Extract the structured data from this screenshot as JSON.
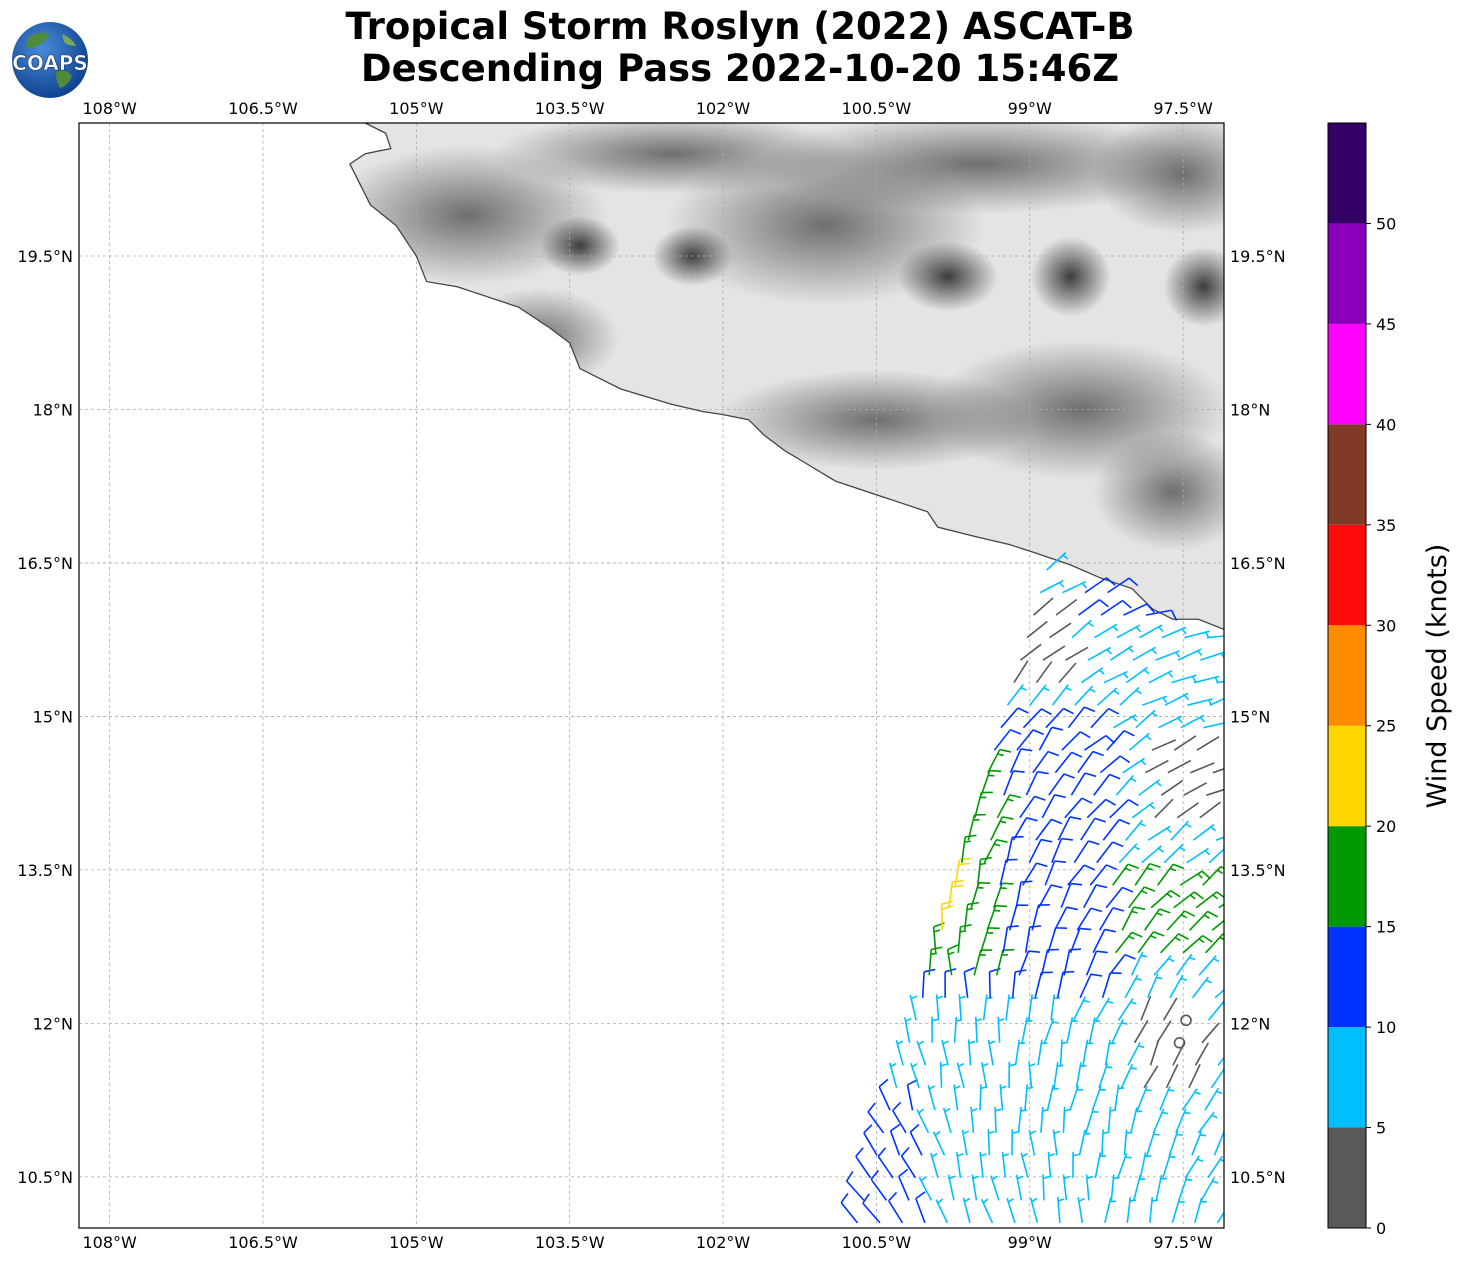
{
  "title": {
    "line1": "Tropical Storm Roslyn (2022) ASCAT-B",
    "line2": "Descending Pass 2022-10-20 15:46Z"
  },
  "logo": {
    "text": "COAPS",
    "icon": "globe-logo-icon"
  },
  "map": {
    "lon_range": [
      -108.3,
      -97.1
    ],
    "lat_range": [
      10.0,
      20.8
    ],
    "lon_ticks": [
      {
        "value": -108,
        "label": "108°W"
      },
      {
        "value": -106.5,
        "label": "106.5°W"
      },
      {
        "value": -105,
        "label": "105°W"
      },
      {
        "value": -103.5,
        "label": "103.5°W"
      },
      {
        "value": -102,
        "label": "102°W"
      },
      {
        "value": -100.5,
        "label": "100.5°W"
      },
      {
        "value": -99,
        "label": "99°W"
      },
      {
        "value": -97.5,
        "label": "97.5°W"
      }
    ],
    "lat_ticks": [
      {
        "value": 19.5,
        "label": "19.5°N"
      },
      {
        "value": 18,
        "label": "18°N"
      },
      {
        "value": 16.5,
        "label": "16.5°N"
      },
      {
        "value": 15,
        "label": "15°N"
      },
      {
        "value": 13.5,
        "label": "13.5°N"
      },
      {
        "value": 12,
        "label": "12°N"
      },
      {
        "value": 10.5,
        "label": "10.5°N"
      }
    ],
    "grid": "dashed",
    "coastline": [
      [
        -105.5,
        20.8
      ],
      [
        -105.3,
        20.7
      ],
      [
        -105.25,
        20.55
      ],
      [
        -105.5,
        20.5
      ],
      [
        -105.65,
        20.4
      ],
      [
        -105.45,
        20.0
      ],
      [
        -105.2,
        19.8
      ],
      [
        -105.0,
        19.5
      ],
      [
        -104.9,
        19.25
      ],
      [
        -104.6,
        19.2
      ],
      [
        -104.3,
        19.1
      ],
      [
        -104.0,
        19.0
      ],
      [
        -103.7,
        18.8
      ],
      [
        -103.5,
        18.65
      ],
      [
        -103.4,
        18.4
      ],
      [
        -103.0,
        18.2
      ],
      [
        -102.5,
        18.05
      ],
      [
        -102.2,
        17.98
      ],
      [
        -102.0,
        17.95
      ],
      [
        -101.75,
        17.9
      ],
      [
        -101.6,
        17.75
      ],
      [
        -101.4,
        17.6
      ],
      [
        -101.15,
        17.45
      ],
      [
        -100.9,
        17.3
      ],
      [
        -100.6,
        17.2
      ],
      [
        -100.3,
        17.1
      ],
      [
        -100.0,
        17.0
      ],
      [
        -99.9,
        16.85
      ],
      [
        -99.5,
        16.75
      ],
      [
        -99.2,
        16.68
      ],
      [
        -98.95,
        16.6
      ],
      [
        -98.6,
        16.48
      ],
      [
        -98.3,
        16.35
      ],
      [
        -98.0,
        16.25
      ],
      [
        -97.8,
        16.05
      ],
      [
        -97.6,
        15.95
      ],
      [
        -97.35,
        15.95
      ],
      [
        -97.1,
        15.85
      ]
    ],
    "land_color": "#e4e4e4"
  },
  "wind_barbs": {
    "region": {
      "lon": [
        -100.8,
        -97.1
      ],
      "lat": [
        10.0,
        16.6
      ]
    },
    "colors_note": "barb color by speed bin"
  },
  "colorbar": {
    "label": "Wind Speed (knots)",
    "ticks": [
      "0",
      "5",
      "10",
      "15",
      "20",
      "25",
      "30",
      "35",
      "40",
      "45",
      "50"
    ],
    "bins": [
      {
        "min": 0,
        "max": 5,
        "color": "#595959"
      },
      {
        "min": 5,
        "max": 10,
        "color": "#00bfff"
      },
      {
        "min": 10,
        "max": 15,
        "color": "#0033ff"
      },
      {
        "min": 15,
        "max": 20,
        "color": "#009900"
      },
      {
        "min": 20,
        "max": 25,
        "color": "#ffd700"
      },
      {
        "min": 25,
        "max": 30,
        "color": "#ff8c00"
      },
      {
        "min": 30,
        "max": 35,
        "color": "#ff0a0a"
      },
      {
        "min": 35,
        "max": 40,
        "color": "#823a28"
      },
      {
        "min": 40,
        "max": 45,
        "color": "#ff00ff"
      },
      {
        "min": 45,
        "max": 50,
        "color": "#8a00bb"
      },
      {
        "min": 50,
        "max": 55,
        "color": "#330066"
      }
    ]
  }
}
